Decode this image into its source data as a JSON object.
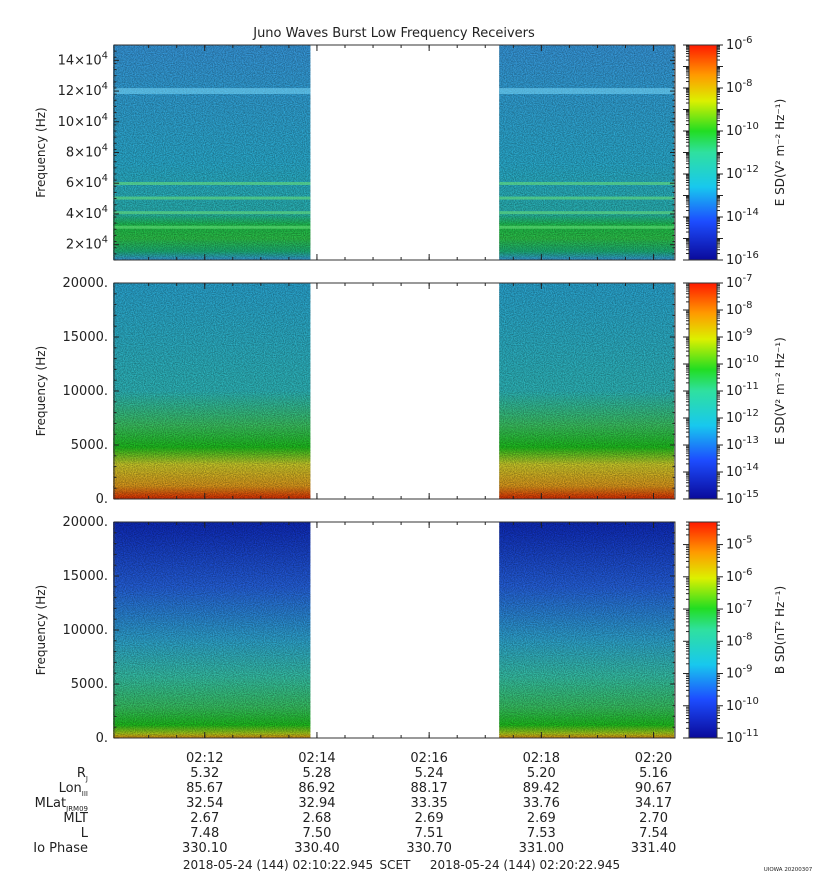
{
  "title": "Juno Waves Burst Low Frequency Receivers",
  "x_tick_labels": [
    "02:12",
    "02:14",
    "02:16",
    "02:18",
    "02:20"
  ],
  "chart_data": [
    {
      "type": "heatmap",
      "panel": "E-field spectrogram (upper band)",
      "ylabel": "Frequency (Hz)",
      "ylim": [
        10000,
        150000
      ],
      "y_ticks": [
        20000,
        40000,
        60000,
        80000,
        100000,
        120000,
        140000
      ],
      "y_tick_labels": [
        {
          "m": "2×10",
          "e": "4"
        },
        {
          "m": "4×10",
          "e": "4"
        },
        {
          "m": "6×10",
          "e": "4"
        },
        {
          "m": "8×10",
          "e": "4"
        },
        {
          "m": "10×10",
          "e": "4"
        },
        {
          "m": "12×10",
          "e": "4"
        },
        {
          "m": "14×10",
          "e": "4"
        }
      ],
      "colorbar_label": "E SD(V² m⁻² Hz⁻¹)",
      "colorbar_range_exponents": [
        -16,
        -6
      ],
      "colorbar_tick_exponents": [
        -16,
        -14,
        -12,
        -10,
        -8,
        -6
      ],
      "data_intervals": [
        [
          "02:10:22",
          "02:13:53"
        ],
        [
          "02:17:15",
          "02:20:22"
        ]
      ]
    },
    {
      "type": "heatmap",
      "panel": "E-field spectrogram (lower band)",
      "ylabel": "Frequency (Hz)",
      "ylim": [
        0,
        20000
      ],
      "y_ticks": [
        0,
        5000,
        10000,
        15000,
        20000
      ],
      "y_tick_labels": [
        "0.",
        "5000.",
        "10000.",
        "15000.",
        "20000."
      ],
      "colorbar_label": "E SD(V² m⁻² Hz⁻¹)",
      "colorbar_range_exponents": [
        -15,
        -7
      ],
      "colorbar_tick_exponents": [
        -15,
        -14,
        -13,
        -12,
        -11,
        -10,
        -9,
        -8,
        -7
      ],
      "data_intervals": [
        [
          "02:10:22",
          "02:13:53"
        ],
        [
          "02:17:15",
          "02:20:22"
        ]
      ]
    },
    {
      "type": "heatmap",
      "panel": "B-field spectrogram",
      "ylabel": "Frequency (Hz)",
      "ylim": [
        0,
        20000
      ],
      "y_ticks": [
        0,
        5000,
        10000,
        15000,
        20000
      ],
      "y_tick_labels": [
        "0.",
        "5000.",
        "10000.",
        "15000.",
        "20000."
      ],
      "colorbar_label": "B SD(nT² Hz⁻¹)",
      "colorbar_range_exponents": [
        -11,
        -4.3
      ],
      "colorbar_tick_exponents": [
        -11,
        -10,
        -9,
        -8,
        -7,
        -6,
        -5
      ],
      "data_intervals": [
        [
          "02:10:22",
          "02:13:53"
        ],
        [
          "02:17:15",
          "02:20:22"
        ]
      ]
    }
  ],
  "ephemeris": {
    "rows": [
      {
        "label": "R",
        "sub": "J",
        "values": [
          "5.32",
          "5.28",
          "5.24",
          "5.20",
          "5.16"
        ]
      },
      {
        "label": "Lon",
        "sub": "III",
        "values": [
          "85.67",
          "86.92",
          "88.17",
          "89.42",
          "90.67"
        ]
      },
      {
        "label": "MLat",
        "sub": "JRM09",
        "values": [
          "32.54",
          "32.94",
          "33.35",
          "33.76",
          "34.17"
        ]
      },
      {
        "label": "MLT",
        "sub": "",
        "values": [
          "2.67",
          "2.68",
          "2.69",
          "2.69",
          "2.70"
        ]
      },
      {
        "label": "L",
        "sub": "",
        "values": [
          "7.48",
          "7.50",
          "7.51",
          "7.53",
          "7.54"
        ]
      },
      {
        "label": "Io Phase",
        "sub": "",
        "values": [
          "330.10",
          "330.40",
          "330.70",
          "331.00",
          "331.40"
        ]
      }
    ]
  },
  "time_range": {
    "start": "2018-05-24 (144) 02:10:22.945",
    "frame": "SCET",
    "end": "2018-05-24 (144) 02:20:22.945"
  },
  "credit": "UIOWA 20200307"
}
